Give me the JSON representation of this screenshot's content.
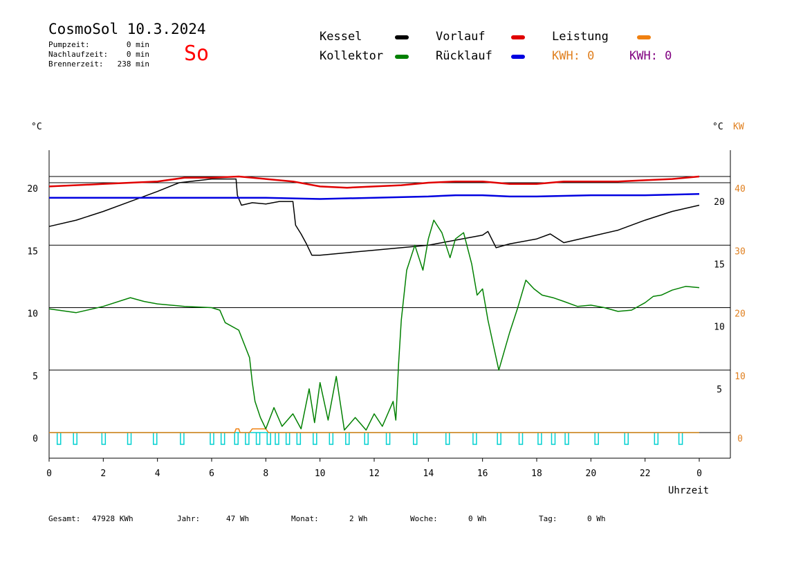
{
  "header": {
    "title": "CosmoSol 10.3.2024",
    "day": "So",
    "stats": [
      {
        "label": "Pumpzeit:",
        "value": "0 min"
      },
      {
        "label": "Nachlaufzeit:",
        "value": "0 min"
      },
      {
        "label": "Brennerzeit:",
        "value": "238 min"
      }
    ]
  },
  "legend": {
    "kessel": {
      "label": "Kessel",
      "color": "#000000"
    },
    "kollektor": {
      "label": "Kollektor",
      "color": "#008000"
    },
    "vorlauf": {
      "label": "Vorlauf",
      "color": "#e00000"
    },
    "ruecklauf": {
      "label": "Rücklauf",
      "color": "#0000e0"
    },
    "leistung": {
      "label": "Leistung",
      "color": "#f08010"
    },
    "kwh1": {
      "label": "KWH: 0",
      "color": "#e08020"
    },
    "kwh2": {
      "label": "KWH: 0",
      "color": "#800080"
    }
  },
  "units": {
    "left": "°C",
    "right_c": "°C",
    "right_kw": "KW"
  },
  "footer": [
    {
      "label": "Gesamt:",
      "value": "47928 KWh"
    },
    {
      "label": "Jahr:",
      "value": "47 Wh"
    },
    {
      "label": "Monat:",
      "value": "2 Wh"
    },
    {
      "label": "Woche:",
      "value": "0 Wh"
    },
    {
      "label": "Tag:",
      "value": "0 Wh"
    }
  ],
  "chart_data": {
    "type": "line",
    "xlabel": "Uhrzeit",
    "xlim": [
      0,
      24
    ],
    "xticks": [
      "0",
      "2",
      "4",
      "6",
      "8",
      "10",
      "12",
      "14",
      "16",
      "18",
      "20",
      "22",
      "0"
    ],
    "ylim_left": [
      -2,
      23
    ],
    "yticks_left": [
      "0",
      "5",
      "10",
      "15",
      "20"
    ],
    "yticks_right_c": [
      "5",
      "10",
      "15",
      "20"
    ],
    "yticks_right_kw": [
      "0",
      "10",
      "20",
      "30",
      "40"
    ],
    "grid_y": [
      0,
      5,
      10,
      15,
      20,
      20.5
    ],
    "series": [
      {
        "name": "Kessel",
        "color": "#000000",
        "x": [
          0,
          1,
          2,
          3,
          4,
          4.8,
          6,
          6.9,
          6.95,
          7.1,
          7.5,
          8,
          8.5,
          9,
          9.1,
          9.3,
          9.5,
          9.7,
          10,
          11,
          12,
          13,
          14,
          15,
          16,
          16.2,
          16.5,
          17,
          18,
          18.5,
          19,
          20,
          21,
          22,
          23,
          24
        ],
        "y": [
          16.5,
          17,
          17.7,
          18.5,
          19.3,
          20,
          20.3,
          20.3,
          19,
          18.2,
          18.4,
          18.3,
          18.5,
          18.5,
          16.6,
          15.9,
          15.1,
          14.2,
          14.2,
          14.4,
          14.6,
          14.8,
          15,
          15.4,
          15.8,
          16.1,
          14.8,
          15.1,
          15.5,
          15.9,
          15.2,
          15.7,
          16.2,
          17,
          17.7,
          18.2
        ]
      },
      {
        "name": "Kollektor",
        "color": "#008000",
        "x": [
          0,
          1,
          2,
          3,
          3.5,
          4,
          5,
          6,
          6.3,
          6.5,
          7,
          7.4,
          7.5,
          7.6,
          7.8,
          8,
          8.3,
          8.6,
          9,
          9.3,
          9.6,
          9.8,
          10,
          10.3,
          10.6,
          10.9,
          11.3,
          11.7,
          12,
          12.3,
          12.7,
          12.8,
          12.9,
          13,
          13.2,
          13.5,
          13.8,
          14,
          14.2,
          14.5,
          14.8,
          15,
          15.3,
          15.6,
          15.8,
          16,
          16.2,
          16.4,
          16.6,
          16.8,
          17,
          17.3,
          17.6,
          17.9,
          18.2,
          18.6,
          19,
          19.5,
          20,
          20.5,
          21,
          21.5,
          22,
          22.3,
          22.6,
          23,
          23.5,
          24
        ],
        "y": [
          9.9,
          9.6,
          10.1,
          10.8,
          10.5,
          10.3,
          10.1,
          10,
          9.8,
          8.8,
          8.2,
          6,
          4,
          2.5,
          1.2,
          0.3,
          2,
          0.5,
          1.5,
          0.3,
          3.5,
          0.8,
          4,
          1,
          4.5,
          0.2,
          1.2,
          0.2,
          1.5,
          0.5,
          2.5,
          1,
          5.5,
          9,
          13,
          15,
          13,
          15.5,
          17,
          16,
          14,
          15.5,
          16,
          13.5,
          11,
          11.5,
          9,
          7,
          5,
          6.5,
          8,
          10,
          12.2,
          11.5,
          11,
          10.8,
          10.5,
          10.1,
          10.2,
          10,
          9.7,
          9.8,
          10.4,
          10.9,
          11,
          11.4,
          11.7,
          11.6
        ]
      },
      {
        "name": "Vorlauf",
        "color": "#e00000",
        "x": [
          0,
          2,
          4,
          5,
          6,
          7,
          8,
          9,
          10,
          11,
          12,
          13,
          14,
          15,
          16,
          17,
          18,
          19,
          20,
          21,
          22,
          23,
          24
        ],
        "y": [
          19.7,
          19.9,
          20.1,
          20.4,
          20.4,
          20.5,
          20.3,
          20.1,
          19.7,
          19.6,
          19.7,
          19.8,
          20,
          20.1,
          20.1,
          19.9,
          19.9,
          20.1,
          20.1,
          20.1,
          20.2,
          20.3,
          20.5
        ]
      },
      {
        "name": "Rücklauf",
        "color": "#0000e0",
        "x": [
          0,
          2,
          4,
          6,
          8,
          10,
          12,
          14,
          15,
          16,
          17,
          18,
          20,
          22,
          24
        ],
        "y": [
          18.8,
          18.8,
          18.8,
          18.8,
          18.8,
          18.7,
          18.8,
          18.9,
          19,
          19,
          18.9,
          18.9,
          19,
          19,
          19.1
        ]
      }
    ],
    "leistung": {
      "name": "Leistung",
      "color": "#f08010",
      "x": [
        0,
        6.85,
        6.9,
        7,
        7.05,
        7.4,
        7.5,
        8,
        8.1,
        24
      ],
      "y": [
        0,
        0,
        0.3,
        0.3,
        0,
        0,
        0.3,
        0.3,
        0,
        0
      ]
    },
    "pumpe": {
      "color": "#00d0d0",
      "x": [
        0.35,
        0.95,
        2,
        2.95,
        3.9,
        4.9,
        6,
        6.4,
        6.9,
        7.3,
        7.7,
        8.1,
        8.4,
        8.8,
        9.2,
        9.8,
        10.4,
        11,
        11.7,
        12.5,
        13.5,
        14.7,
        15.7,
        16.6,
        17.4,
        18.1,
        18.6,
        19.1,
        20.2,
        21.3,
        22.4,
        23.3
      ]
    }
  }
}
